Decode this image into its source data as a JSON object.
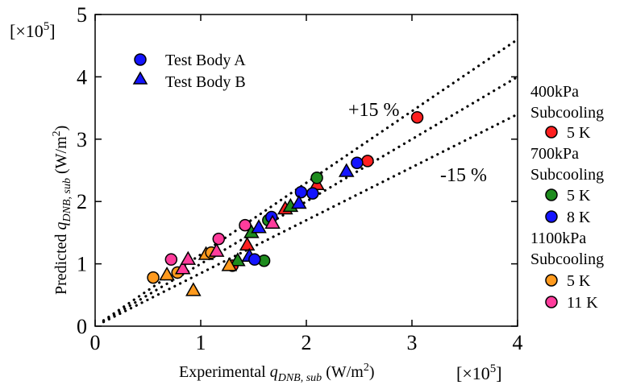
{
  "chart_data": {
    "type": "scatter",
    "xaxis": {
      "label_prefix": "Experimental ",
      "label_q": "q",
      "label_sub": "DNB, sub",
      "label_unit": " (W/m",
      "label_unit_exp": "2",
      "label_unit_close": ")",
      "multiplier_base": "[×10",
      "multiplier_exp": "5",
      "multiplier_close": "]",
      "range": [
        0,
        4
      ],
      "ticks": [
        "0",
        "1",
        "2",
        "3",
        "4"
      ]
    },
    "yaxis": {
      "label_prefix": "Predicted ",
      "label_q": "q",
      "label_sub": "DNB, sub",
      "label_unit": " (W/m",
      "label_unit_exp": "2",
      "label_unit_close": ")",
      "multiplier_base": "[×10",
      "multiplier_exp": "5",
      "multiplier_close": "]",
      "range": [
        0,
        5
      ],
      "ticks": [
        "0",
        "1",
        "2",
        "3",
        "4",
        "5"
      ]
    },
    "reference_lines": [
      {
        "slope": 1.15,
        "label": "+15 %"
      },
      {
        "slope": 1.0,
        "label": ""
      },
      {
        "slope": 0.85,
        "label": "-15 %"
      }
    ],
    "marker_legend": [
      {
        "label": "Test Body A",
        "shape": "circle",
        "color": "#1414ff"
      },
      {
        "label": "Test Body B",
        "shape": "triangle",
        "color": "#1414ff"
      }
    ],
    "condition_legend": [
      {
        "pressure": "400kPa",
        "subcooling_label": "Subcooling",
        "entries": [
          {
            "label": "5 K",
            "color": "#ff2020"
          }
        ]
      },
      {
        "pressure": "700kPa",
        "subcooling_label": "Subcooling",
        "entries": [
          {
            "label": "5 K",
            "color": "#1e8c1e"
          },
          {
            "label": "8 K",
            "color": "#1414ff"
          }
        ]
      },
      {
        "pressure": "1100kPa",
        "subcooling_label": "Subcooling",
        "entries": [
          {
            "label": "5 K",
            "color": "#ff9a1e"
          },
          {
            "label": "11 K",
            "color": "#ff3c9c"
          }
        ]
      }
    ],
    "series": [
      {
        "name": "400kPa 5 K",
        "color": "#ff2020",
        "points": [
          {
            "x": 3.05,
            "y": 3.35,
            "m": "circle"
          },
          {
            "x": 2.58,
            "y": 2.65,
            "m": "circle"
          },
          {
            "x": 2.1,
            "y": 2.27,
            "m": "triangle"
          },
          {
            "x": 1.3,
            "y": 0.97,
            "m": "circle"
          },
          {
            "x": 1.44,
            "y": 1.3,
            "m": "triangle"
          },
          {
            "x": 1.8,
            "y": 1.88,
            "m": "triangle"
          }
        ]
      },
      {
        "name": "700kPa 5 K",
        "color": "#1e8c1e",
        "points": [
          {
            "x": 2.1,
            "y": 2.38,
            "m": "circle"
          },
          {
            "x": 1.6,
            "y": 1.05,
            "m": "circle"
          },
          {
            "x": 1.35,
            "y": 1.05,
            "m": "triangle"
          },
          {
            "x": 1.48,
            "y": 1.5,
            "m": "triangle"
          },
          {
            "x": 1.85,
            "y": 1.92,
            "m": "triangle"
          },
          {
            "x": 1.64,
            "y": 1.7,
            "m": "circle"
          }
        ]
      },
      {
        "name": "700kPa 8 K",
        "color": "#1414ff",
        "points": [
          {
            "x": 2.48,
            "y": 2.62,
            "m": "circle"
          },
          {
            "x": 2.38,
            "y": 2.48,
            "m": "triangle"
          },
          {
            "x": 2.06,
            "y": 2.13,
            "m": "circle"
          },
          {
            "x": 1.95,
            "y": 2.15,
            "m": "circle"
          },
          {
            "x": 1.93,
            "y": 1.97,
            "m": "triangle"
          },
          {
            "x": 1.67,
            "y": 1.75,
            "m": "circle"
          },
          {
            "x": 1.55,
            "y": 1.58,
            "m": "triangle"
          },
          {
            "x": 1.46,
            "y": 1.12,
            "m": "triangle"
          },
          {
            "x": 1.51,
            "y": 1.07,
            "m": "circle"
          }
        ]
      },
      {
        "name": "1100kPa 5 K",
        "color": "#ff9a1e",
        "points": [
          {
            "x": 0.55,
            "y": 0.78,
            "m": "circle"
          },
          {
            "x": 0.68,
            "y": 0.82,
            "m": "triangle"
          },
          {
            "x": 0.78,
            "y": 0.86,
            "m": "circle"
          },
          {
            "x": 0.93,
            "y": 0.57,
            "m": "triangle"
          },
          {
            "x": 1.05,
            "y": 1.15,
            "m": "triangle"
          },
          {
            "x": 1.1,
            "y": 1.18,
            "m": "circle"
          },
          {
            "x": 1.27,
            "y": 0.97,
            "m": "triangle"
          }
        ]
      },
      {
        "name": "1100kPa 11 K",
        "color": "#ff3c9c",
        "points": [
          {
            "x": 0.72,
            "y": 1.07,
            "m": "circle"
          },
          {
            "x": 0.83,
            "y": 0.92,
            "m": "triangle"
          },
          {
            "x": 0.88,
            "y": 1.07,
            "m": "triangle"
          },
          {
            "x": 1.17,
            "y": 1.4,
            "m": "circle"
          },
          {
            "x": 1.15,
            "y": 1.2,
            "m": "triangle"
          },
          {
            "x": 1.42,
            "y": 1.62,
            "m": "circle"
          },
          {
            "x": 1.68,
            "y": 1.65,
            "m": "triangle"
          }
        ]
      }
    ]
  }
}
